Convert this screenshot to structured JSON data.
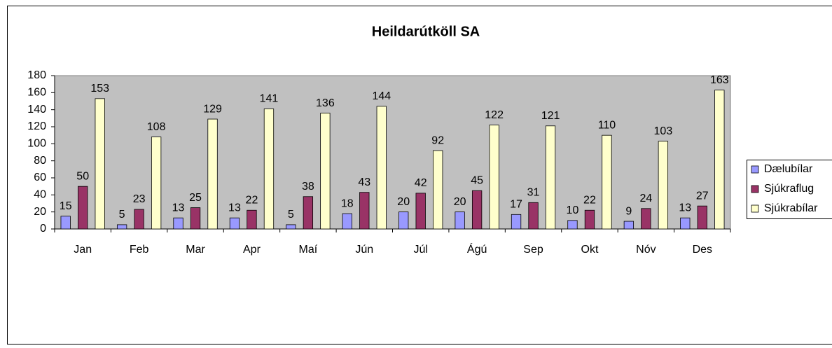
{
  "chart_data": {
    "type": "bar",
    "title": "Heildarútköll SA",
    "categories": [
      "Jan",
      "Feb",
      "Mar",
      "Apr",
      "Maí",
      "Jún",
      "Júl",
      "Ágú",
      "Sep",
      "Okt",
      "Nóv",
      "Des"
    ],
    "series": [
      {
        "name": "Dælubílar",
        "color": "#9999ff",
        "values": [
          15,
          5,
          13,
          13,
          5,
          18,
          20,
          20,
          17,
          10,
          9,
          13
        ]
      },
      {
        "name": "Sjúkraflug",
        "color": "#993366",
        "values": [
          50,
          23,
          25,
          22,
          38,
          43,
          42,
          45,
          31,
          22,
          24,
          27
        ]
      },
      {
        "name": "Sjúkrabílar",
        "color": "#ffffcc",
        "values": [
          153,
          108,
          129,
          141,
          136,
          144,
          92,
          122,
          121,
          110,
          103,
          163
        ]
      }
    ],
    "ylim": [
      0,
      180
    ],
    "yticks": [
      0,
      20,
      40,
      60,
      80,
      100,
      120,
      140,
      160,
      180
    ],
    "legend": "right",
    "plot_background": "#c0c0c0"
  }
}
